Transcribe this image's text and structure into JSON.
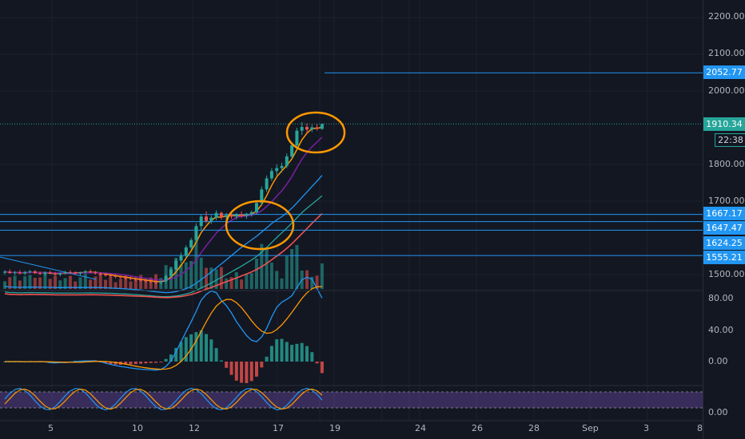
{
  "colors": {
    "background": "#131722",
    "grid": "#1e222d",
    "up": "#26a69a",
    "down": "#ef5350",
    "level_line": "#2196f3",
    "highlight_circle": "#ff9800",
    "ma_fast": "#ff9800",
    "ma_mid": "#7b1fa2",
    "ma_slow_blue": "#2196f3",
    "ma_slow_teal": "#26a69a",
    "ma_slow_red": "#ef5350",
    "macd_line": "#2196f3",
    "signal_line": "#ff9800",
    "stoch_band": "#7e57c2"
  },
  "price_axis": {
    "ticks": [
      "2200.00",
      "2100.00",
      "2000.00",
      "1800.00",
      "1700.00",
      "1500.00"
    ]
  },
  "price_labels": {
    "current": "1910.34",
    "countdown": "22:38",
    "levels": [
      "2052.77",
      "1667.17",
      "1647.47",
      "1624.25",
      "1555.21"
    ]
  },
  "macd_axis": {
    "ticks": [
      "80.00",
      "40.00",
      "0.00"
    ]
  },
  "stoch_axis": {
    "ticks": [
      "0.00"
    ]
  },
  "time_axis": {
    "ticks": [
      "5",
      "10",
      "12",
      "17",
      "19",
      "24",
      "26",
      "28",
      "Sep",
      "3",
      "8"
    ]
  },
  "chart_data": {
    "type": "candlestick",
    "title": "",
    "y_range": [
      1455,
      2245
    ],
    "candles_ohlc": [
      [
        1505,
        1512,
        1500,
        1508
      ],
      [
        1508,
        1514,
        1502,
        1504
      ],
      [
        1504,
        1510,
        1498,
        1506
      ],
      [
        1506,
        1512,
        1501,
        1503
      ],
      [
        1503,
        1510,
        1498,
        1507
      ],
      [
        1507,
        1513,
        1503,
        1509
      ],
      [
        1509,
        1512,
        1502,
        1504
      ],
      [
        1504,
        1508,
        1498,
        1502
      ],
      [
        1502,
        1509,
        1497,
        1506
      ],
      [
        1506,
        1511,
        1501,
        1503
      ],
      [
        1503,
        1507,
        1497,
        1500
      ],
      [
        1500,
        1506,
        1495,
        1504
      ],
      [
        1504,
        1510,
        1500,
        1507
      ],
      [
        1507,
        1512,
        1502,
        1505
      ],
      [
        1505,
        1509,
        1499,
        1503
      ],
      [
        1503,
        1508,
        1498,
        1506
      ],
      [
        1506,
        1512,
        1502,
        1509
      ],
      [
        1509,
        1514,
        1504,
        1506
      ],
      [
        1506,
        1510,
        1500,
        1503
      ],
      [
        1503,
        1507,
        1497,
        1500
      ],
      [
        1500,
        1505,
        1494,
        1498
      ],
      [
        1498,
        1503,
        1492,
        1496
      ],
      [
        1496,
        1501,
        1490,
        1494
      ],
      [
        1494,
        1498,
        1488,
        1492
      ],
      [
        1492,
        1497,
        1486,
        1490
      ],
      [
        1490,
        1495,
        1484,
        1488
      ],
      [
        1488,
        1493,
        1482,
        1486
      ],
      [
        1486,
        1491,
        1480,
        1484
      ],
      [
        1484,
        1489,
        1478,
        1482
      ],
      [
        1482,
        1487,
        1476,
        1480
      ],
      [
        1480,
        1485,
        1474,
        1478
      ],
      [
        1478,
        1484,
        1473,
        1482
      ],
      [
        1482,
        1500,
        1478,
        1496
      ],
      [
        1496,
        1520,
        1490,
        1514
      ],
      [
        1514,
        1545,
        1508,
        1538
      ],
      [
        1538,
        1560,
        1530,
        1552
      ],
      [
        1552,
        1580,
        1546,
        1574
      ],
      [
        1574,
        1600,
        1568,
        1594
      ],
      [
        1594,
        1640,
        1588,
        1632
      ],
      [
        1632,
        1665,
        1620,
        1658
      ],
      [
        1658,
        1672,
        1640,
        1646
      ],
      [
        1646,
        1662,
        1638,
        1655
      ],
      [
        1655,
        1675,
        1648,
        1668
      ],
      [
        1668,
        1672,
        1650,
        1656
      ],
      [
        1656,
        1668,
        1648,
        1662
      ],
      [
        1662,
        1670,
        1652,
        1658
      ],
      [
        1658,
        1668,
        1650,
        1664
      ],
      [
        1664,
        1672,
        1655,
        1660
      ],
      [
        1660,
        1668,
        1652,
        1666
      ],
      [
        1666,
        1675,
        1658,
        1670
      ],
      [
        1670,
        1700,
        1664,
        1695
      ],
      [
        1695,
        1740,
        1688,
        1732
      ],
      [
        1732,
        1770,
        1725,
        1762
      ],
      [
        1762,
        1790,
        1755,
        1782
      ],
      [
        1782,
        1800,
        1770,
        1790
      ],
      [
        1790,
        1805,
        1778,
        1796
      ],
      [
        1796,
        1830,
        1790,
        1822
      ],
      [
        1822,
        1860,
        1815,
        1852
      ],
      [
        1852,
        1900,
        1845,
        1892
      ],
      [
        1892,
        1915,
        1880,
        1902
      ],
      [
        1902,
        1912,
        1885,
        1895
      ],
      [
        1895,
        1908,
        1888,
        1901
      ],
      [
        1901,
        1910,
        1892,
        1897
      ],
      [
        1897,
        1912,
        1894,
        1910.34
      ]
    ]
  }
}
